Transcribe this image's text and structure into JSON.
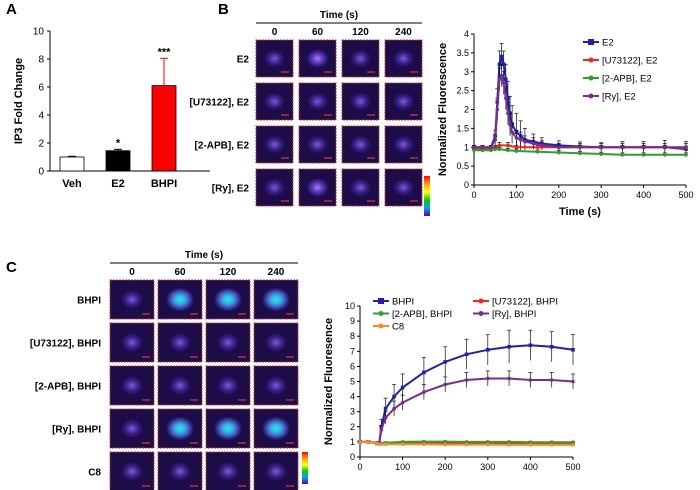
{
  "panels": {
    "A": "A",
    "B": "B",
    "C": "C"
  },
  "micro_b": {
    "time_title": "Time (s)",
    "times": [
      "0",
      "60",
      "120",
      "240"
    ],
    "rows": [
      "E2",
      "[U73122], E2",
      "[2-APB], E2",
      "[Ry], E2"
    ]
  },
  "micro_c": {
    "time_title": "Time (s)",
    "times": [
      "0",
      "60",
      "120",
      "240"
    ],
    "rows": [
      "BHPI",
      "[U73122], BHPI",
      "[2-APB], BHPI",
      "[Ry], BHPI",
      "C8"
    ]
  },
  "colors": {
    "bar_veh": "#ffffff",
    "bar_e2": "#000000",
    "bar_bhpi": "#ff0000",
    "blue": "#1f1fb4",
    "red": "#ff2020",
    "green": "#2ca02c",
    "purple": "#7b2c8f",
    "orange": "#ff8c1a"
  },
  "chart_data": [
    {
      "type": "bar",
      "panel": "A",
      "categories": [
        "Veh",
        "E2",
        "BHPI"
      ],
      "values": [
        1.0,
        1.45,
        6.1
      ],
      "errors": [
        0.05,
        0.1,
        1.95
      ],
      "significance": [
        "",
        "*",
        "***"
      ],
      "ylabel": "IP3 Fold Change",
      "xlabel": "",
      "ylim": [
        0,
        10
      ],
      "yticks": [
        "0",
        "2",
        "4",
        "6",
        "8",
        "10"
      ]
    },
    {
      "type": "line",
      "panel": "B",
      "xlabel": "Time (s)",
      "ylabel": "Normalized Fluorescence",
      "xlim": [
        0,
        500
      ],
      "ylim": [
        0,
        4
      ],
      "xticks": [
        "0",
        "100",
        "200",
        "300",
        "400",
        "500"
      ],
      "yticks": [
        "0",
        "0.5",
        "1",
        "1.5",
        "2",
        "2.5",
        "3",
        "3.5",
        "4"
      ],
      "legend": "top-right",
      "series": [
        {
          "name": "E2",
          "color": "#1f1fb4",
          "marker": "square",
          "x": [
            0,
            20,
            40,
            50,
            55,
            60,
            65,
            70,
            75,
            80,
            85,
            90,
            100,
            110,
            120,
            140,
            160,
            200,
            250,
            300,
            350,
            400,
            450,
            500
          ],
          "y": [
            1.0,
            1.0,
            1.0,
            1.3,
            2.2,
            3.2,
            3.4,
            3.2,
            2.8,
            2.3,
            1.9,
            1.6,
            1.4,
            1.3,
            1.2,
            1.15,
            1.1,
            1.05,
            1.02,
            1.0,
            1.0,
            1.0,
            1.0,
            0.95
          ],
          "err": [
            0.05,
            0.05,
            0.05,
            0.15,
            0.35,
            0.35,
            0.35,
            0.35,
            0.4,
            0.45,
            0.45,
            0.5,
            0.5,
            0.4,
            0.3,
            0.2,
            0.15,
            0.12,
            0.12,
            0.12,
            0.15,
            0.15,
            0.18,
            0.2
          ]
        },
        {
          "name": "[U73122], E2",
          "color": "#ff2020",
          "marker": "circle",
          "x": [
            0,
            20,
            40,
            50,
            60,
            80,
            100,
            150,
            200,
            250,
            300,
            350,
            400,
            450,
            500
          ],
          "y": [
            0.95,
            0.95,
            0.95,
            1.0,
            1.05,
            1.05,
            1.0,
            1.0,
            1.0,
            1.0,
            1.0,
            1.0,
            1.0,
            1.0,
            0.98
          ],
          "err": [
            0.03,
            0.03,
            0.03,
            0.05,
            0.08,
            0.08,
            0.05,
            0.05,
            0.05,
            0.05,
            0.05,
            0.05,
            0.05,
            0.05,
            0.05
          ]
        },
        {
          "name": "[2-APB], E2",
          "color": "#2ca02c",
          "marker": "circle",
          "x": [
            0,
            20,
            40,
            50,
            60,
            80,
            100,
            150,
            200,
            250,
            300,
            350,
            400,
            450,
            500
          ],
          "y": [
            0.92,
            0.92,
            0.92,
            0.95,
            0.95,
            0.92,
            0.9,
            0.88,
            0.86,
            0.84,
            0.82,
            0.8,
            0.8,
            0.8,
            0.8
          ],
          "err": [
            0.03,
            0.03,
            0.03,
            0.05,
            0.05,
            0.05,
            0.05,
            0.05,
            0.05,
            0.05,
            0.05,
            0.05,
            0.05,
            0.05,
            0.05
          ]
        },
        {
          "name": "[Ry], E2",
          "color": "#7b2c8f",
          "marker": "circle",
          "x": [
            0,
            20,
            40,
            50,
            55,
            60,
            65,
            70,
            75,
            80,
            85,
            90,
            100,
            110,
            120,
            140,
            160,
            200,
            250,
            300,
            350,
            400,
            450,
            500
          ],
          "y": [
            1.0,
            1.0,
            1.0,
            1.2,
            2.0,
            2.8,
            2.9,
            2.7,
            2.3,
            1.9,
            1.6,
            1.4,
            1.25,
            1.2,
            1.15,
            1.1,
            1.05,
            1.0,
            1.0,
            1.0,
            1.0,
            1.0,
            1.0,
            1.0
          ],
          "err": [
            0.05,
            0.05,
            0.05,
            0.15,
            0.3,
            0.3,
            0.3,
            0.3,
            0.3,
            0.3,
            0.3,
            0.25,
            0.2,
            0.2,
            0.15,
            0.15,
            0.12,
            0.1,
            0.1,
            0.1,
            0.1,
            0.1,
            0.1,
            0.1
          ]
        }
      ]
    },
    {
      "type": "line",
      "panel": "C",
      "xlabel": "",
      "ylabel": "Normalized Fluoresence",
      "xlim": [
        0,
        500
      ],
      "ylim": [
        0,
        10
      ],
      "xticks": [
        "0",
        "100",
        "200",
        "300",
        "400",
        "500"
      ],
      "yticks": [
        "0",
        "1",
        "2",
        "3",
        "4",
        "5",
        "6",
        "7",
        "8",
        "9",
        "10"
      ],
      "legend": "top",
      "series": [
        {
          "name": "BHPI",
          "color": "#1f1fb4",
          "marker": "square",
          "x": [
            0,
            20,
            40,
            45,
            50,
            60,
            80,
            100,
            150,
            200,
            250,
            300,
            350,
            400,
            450,
            500
          ],
          "y": [
            1.0,
            1.0,
            0.9,
            0.9,
            2.0,
            3.2,
            4.0,
            4.6,
            5.6,
            6.3,
            6.8,
            7.1,
            7.3,
            7.4,
            7.3,
            7.1
          ],
          "err": [
            0.05,
            0.05,
            0.05,
            0.05,
            0.5,
            0.7,
            0.8,
            0.9,
            1.0,
            1.0,
            1.0,
            1.0,
            1.1,
            1.0,
            1.0,
            1.0
          ]
        },
        {
          "name": "[U73122], BHPI",
          "color": "#ff2020",
          "marker": "circle",
          "x": [
            0,
            20,
            40,
            50,
            60,
            100,
            150,
            200,
            250,
            300,
            350,
            400,
            450,
            500
          ],
          "y": [
            1.0,
            1.0,
            0.95,
            0.9,
            0.9,
            0.92,
            0.92,
            0.92,
            0.92,
            0.92,
            0.92,
            0.9,
            0.9,
            0.9
          ],
          "err": [
            0.05,
            0.05,
            0.05,
            0.05,
            0.05,
            0.05,
            0.05,
            0.05,
            0.05,
            0.05,
            0.05,
            0.05,
            0.05,
            0.05
          ]
        },
        {
          "name": "[2-APB], BHPI",
          "color": "#2ca02c",
          "marker": "circle",
          "x": [
            0,
            20,
            40,
            50,
            60,
            100,
            150,
            200,
            250,
            300,
            350,
            400,
            450,
            500
          ],
          "y": [
            1.0,
            1.0,
            0.95,
            0.9,
            0.95,
            1.0,
            1.02,
            1.02,
            1.0,
            1.0,
            1.0,
            0.98,
            0.98,
            0.98
          ],
          "err": [
            0.05,
            0.05,
            0.05,
            0.05,
            0.05,
            0.05,
            0.05,
            0.05,
            0.05,
            0.05,
            0.05,
            0.05,
            0.05,
            0.05
          ]
        },
        {
          "name": "[Ry], BHPI",
          "color": "#7b2c8f",
          "marker": "circle",
          "x": [
            0,
            20,
            40,
            45,
            50,
            60,
            80,
            100,
            150,
            200,
            250,
            300,
            350,
            400,
            450,
            500
          ],
          "y": [
            1.0,
            1.0,
            0.9,
            0.9,
            1.8,
            2.6,
            3.2,
            3.6,
            4.3,
            4.8,
            5.1,
            5.2,
            5.2,
            5.1,
            5.1,
            5.0
          ],
          "err": [
            0.05,
            0.05,
            0.05,
            0.05,
            0.3,
            0.4,
            0.5,
            0.5,
            0.5,
            0.5,
            0.5,
            0.5,
            0.5,
            0.5,
            0.5,
            0.5
          ]
        },
        {
          "name": "C8",
          "color": "#ff8c1a",
          "marker": "circle",
          "x": [
            0,
            20,
            40,
            50,
            60,
            100,
            150,
            200,
            250,
            300,
            350,
            400,
            450,
            500
          ],
          "y": [
            1.0,
            1.0,
            0.9,
            0.85,
            0.85,
            0.85,
            0.85,
            0.82,
            0.82,
            0.82,
            0.8,
            0.8,
            0.8,
            0.8
          ],
          "err": [
            0.05,
            0.05,
            0.05,
            0.05,
            0.05,
            0.05,
            0.05,
            0.05,
            0.05,
            0.05,
            0.05,
            0.05,
            0.05,
            0.05
          ]
        }
      ]
    }
  ]
}
